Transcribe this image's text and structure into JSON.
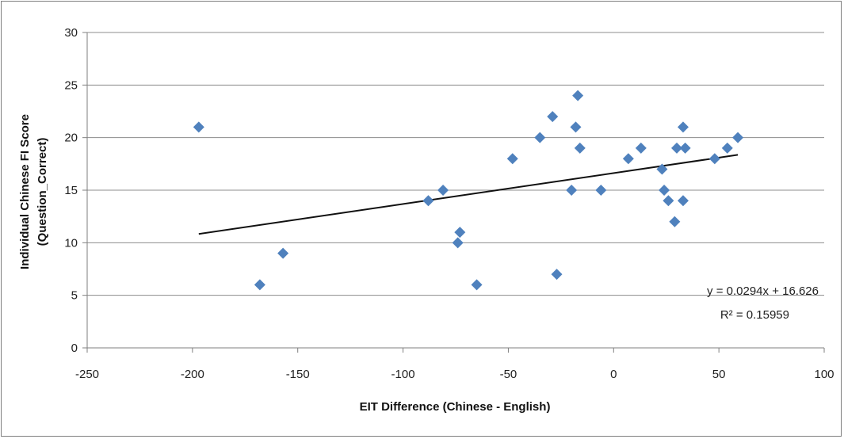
{
  "chart_data": {
    "type": "scatter",
    "title": "",
    "xlabel": "EIT Difference (Chinese  - English)",
    "ylabel_lines": [
      "Individual Chinese  FI Score",
      "(Question_Correct)"
    ],
    "xlim": [
      -250,
      100
    ],
    "ylim": [
      0,
      30
    ],
    "x_ticks": [
      -250,
      -200,
      -150,
      -100,
      -50,
      0,
      50,
      100
    ],
    "y_ticks": [
      0,
      5,
      10,
      15,
      20,
      25,
      30
    ],
    "grid": "horizontal",
    "legend": "none",
    "marker": "diamond",
    "marker_color": "#4f81bd",
    "trendline_color": "#111111",
    "points": [
      {
        "x": -197,
        "y": 21
      },
      {
        "x": -168,
        "y": 6
      },
      {
        "x": -157,
        "y": 9
      },
      {
        "x": -88,
        "y": 14
      },
      {
        "x": -81,
        "y": 15
      },
      {
        "x": -74,
        "y": 10
      },
      {
        "x": -73,
        "y": 11
      },
      {
        "x": -65,
        "y": 6
      },
      {
        "x": -48,
        "y": 18
      },
      {
        "x": -35,
        "y": 20
      },
      {
        "x": -29,
        "y": 22
      },
      {
        "x": -27,
        "y": 7
      },
      {
        "x": -20,
        "y": 15
      },
      {
        "x": -18,
        "y": 21
      },
      {
        "x": -17,
        "y": 24
      },
      {
        "x": -16,
        "y": 19
      },
      {
        "x": -6,
        "y": 15
      },
      {
        "x": 7,
        "y": 18
      },
      {
        "x": 13,
        "y": 19
      },
      {
        "x": 23,
        "y": 17
      },
      {
        "x": 24,
        "y": 15
      },
      {
        "x": 26,
        "y": 14
      },
      {
        "x": 29,
        "y": 12
      },
      {
        "x": 30,
        "y": 19
      },
      {
        "x": 33,
        "y": 21
      },
      {
        "x": 33,
        "y": 14
      },
      {
        "x": 34,
        "y": 19
      },
      {
        "x": 48,
        "y": 18
      },
      {
        "x": 54,
        "y": 19
      },
      {
        "x": 59,
        "y": 20
      }
    ],
    "trendline": {
      "slope": 0.0294,
      "intercept": 16.626,
      "x_range": [
        -197,
        59
      ],
      "equation": "y = 0.0294x + 16.626",
      "r_squared": "R² = 0.15959"
    }
  }
}
